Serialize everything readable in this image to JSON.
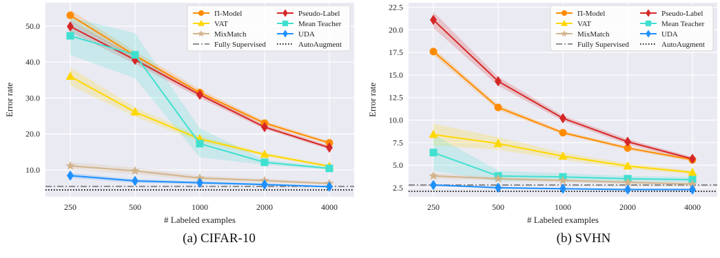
{
  "figure": {
    "captions": [
      "(a) CIFAR-10",
      "(b) SVHN"
    ]
  },
  "chart_data": [
    {
      "type": "line",
      "caption": "(a) CIFAR-10",
      "xlabel": "# Labeled examples",
      "ylabel": "Error rate",
      "x_scale": "categorical",
      "categories": [
        "250",
        "500",
        "1000",
        "2000",
        "4000"
      ],
      "yticks": [
        "10.0",
        "20.0",
        "30.0",
        "40.0",
        "50.0"
      ],
      "ylim": [
        2.5,
        56.5
      ],
      "grid": true,
      "background": "#eaeaf2",
      "legend": "top-right",
      "series": [
        {
          "name": "Π-Model",
          "color": "#ff8c00",
          "marker": "circle",
          "values": [
            53.0,
            41.8,
            31.5,
            23.0,
            17.5
          ],
          "band": [
            [
              51.5,
              54.5
            ],
            [
              40.5,
              43.0
            ],
            [
              30.6,
              32.4
            ],
            [
              22.4,
              23.6
            ],
            [
              17.0,
              18.0
            ]
          ]
        },
        {
          "name": "Pseudo-Label",
          "color": "#d62728",
          "marker": "diamond",
          "values": [
            49.9,
            40.6,
            30.9,
            21.9,
            16.2
          ],
          "band": [
            [
              48.3,
              51.5
            ],
            [
              39.5,
              41.7
            ],
            [
              30.0,
              31.8
            ],
            [
              21.3,
              22.5
            ],
            [
              15.7,
              16.7
            ]
          ]
        },
        {
          "name": "VAT",
          "color": "#ffd700",
          "marker": "triangle",
          "values": [
            36.0,
            26.1,
            18.6,
            14.3,
            11.0
          ],
          "band": [
            [
              33.5,
              38.5
            ],
            [
              24.8,
              27.4
            ],
            [
              17.8,
              19.4
            ],
            [
              13.8,
              14.8
            ],
            [
              10.6,
              11.4
            ]
          ]
        },
        {
          "name": "Mean Teacher",
          "color": "#40e0d0",
          "marker": "square",
          "values": [
            47.3,
            42.0,
            17.3,
            12.1,
            10.4
          ],
          "band": [
            [
              42.0,
              52.5
            ],
            [
              35.5,
              48.0
            ],
            [
              13.5,
              21.5
            ],
            [
              11.4,
              12.8
            ],
            [
              10.0,
              10.8
            ]
          ]
        },
        {
          "name": "MixMatch",
          "color": "#d2b48c",
          "marker": "star",
          "values": [
            11.1,
            9.7,
            7.7,
            7.0,
            6.2
          ],
          "band": [
            [
              10.0,
              12.2
            ],
            [
              8.8,
              10.6
            ],
            [
              7.0,
              8.4
            ],
            [
              6.4,
              7.6
            ],
            [
              5.8,
              6.6
            ]
          ]
        },
        {
          "name": "UDA",
          "color": "#1e90ff",
          "marker": "diamond",
          "values": [
            8.4,
            6.9,
            6.4,
            5.9,
            5.3
          ],
          "band": [
            [
              7.7,
              9.1
            ],
            [
              6.4,
              7.4
            ],
            [
              6.0,
              6.8
            ],
            [
              5.6,
              6.2
            ],
            [
              5.1,
              5.5
            ]
          ]
        },
        {
          "name": "Fully Supervised",
          "color": "#808080",
          "style": "dashdot",
          "constant": 5.4
        },
        {
          "name": "AutoAugment",
          "color": "#000000",
          "style": "dotted",
          "constant": 4.4
        }
      ]
    },
    {
      "type": "line",
      "caption": "(b) SVHN",
      "xlabel": "# Labeled examples",
      "ylabel": "Error rate",
      "x_scale": "categorical",
      "categories": [
        "250",
        "500",
        "1000",
        "2000",
        "4000"
      ],
      "yticks": [
        "2.5",
        "5.0",
        "7.5",
        "10.0",
        "12.5",
        "15.0",
        "17.5",
        "20.0",
        "22.5"
      ],
      "ylim": [
        1.5,
        23.0
      ],
      "grid": true,
      "background": "#eaeaf2",
      "legend": "top-right",
      "series": [
        {
          "name": "Π-Model",
          "color": "#ff8c00",
          "marker": "circle",
          "values": [
            17.6,
            11.4,
            8.6,
            6.9,
            5.6
          ],
          "band": [
            [
              17.2,
              18.0
            ],
            [
              11.1,
              11.7
            ],
            [
              8.4,
              8.8
            ],
            [
              6.7,
              7.1
            ],
            [
              5.4,
              5.8
            ]
          ]
        },
        {
          "name": "Pseudo-Label",
          "color": "#d62728",
          "marker": "diamond",
          "values": [
            21.1,
            14.3,
            10.2,
            7.6,
            5.7
          ],
          "band": [
            [
              20.2,
              22.0
            ],
            [
              13.8,
              14.8
            ],
            [
              9.9,
              10.5
            ],
            [
              7.3,
              7.9
            ],
            [
              5.5,
              5.9
            ]
          ]
        },
        {
          "name": "VAT",
          "color": "#ffd700",
          "marker": "triangle",
          "values": [
            8.4,
            7.4,
            6.0,
            4.9,
            4.2
          ],
          "band": [
            [
              7.2,
              9.6
            ],
            [
              6.7,
              8.1
            ],
            [
              5.6,
              6.4
            ],
            [
              4.6,
              5.2
            ],
            [
              4.0,
              4.4
            ]
          ]
        },
        {
          "name": "Mean Teacher",
          "color": "#40e0d0",
          "marker": "square",
          "values": [
            6.4,
            3.8,
            3.7,
            3.5,
            3.4
          ],
          "band": [
            [
              4.4,
              8.4
            ],
            [
              3.2,
              4.4
            ],
            [
              3.3,
              4.1
            ],
            [
              3.2,
              3.8
            ],
            [
              3.1,
              3.7
            ]
          ]
        },
        {
          "name": "MixMatch",
          "color": "#d2b48c",
          "marker": "star",
          "values": [
            3.8,
            3.5,
            3.3,
            3.1,
            2.9
          ],
          "band": [
            [
              3.5,
              4.1
            ],
            [
              3.3,
              3.7
            ],
            [
              3.1,
              3.5
            ],
            [
              2.9,
              3.3
            ],
            [
              2.7,
              3.1
            ]
          ]
        },
        {
          "name": "UDA",
          "color": "#1e90ff",
          "marker": "diamond",
          "values": [
            2.8,
            2.5,
            2.4,
            2.3,
            2.3
          ],
          "band": [
            [
              2.7,
              2.9
            ],
            [
              2.4,
              2.6
            ],
            [
              2.3,
              2.5
            ],
            [
              2.2,
              2.4
            ],
            [
              2.2,
              2.4
            ]
          ]
        },
        {
          "name": "Fully Supervised",
          "color": "#808080",
          "style": "dashdot",
          "constant": 2.8
        },
        {
          "name": "AutoAugment",
          "color": "#000000",
          "style": "dotted",
          "constant": 2.1
        }
      ]
    }
  ]
}
